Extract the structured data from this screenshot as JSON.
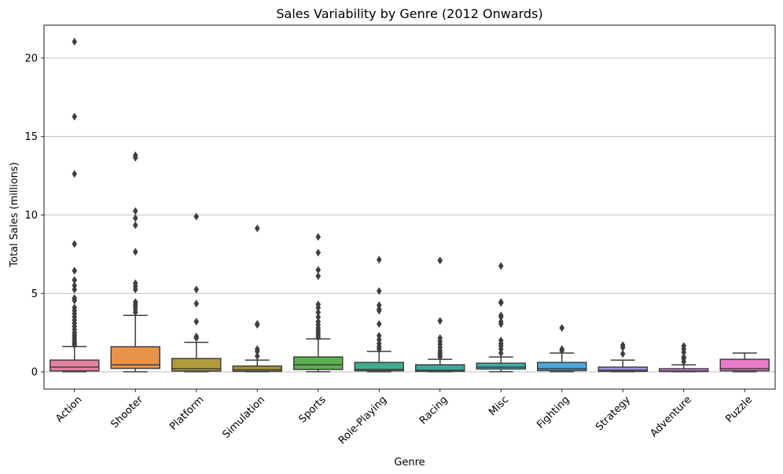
{
  "chart_data": {
    "type": "box",
    "title": "Sales Variability by Genre (2012 Onwards)",
    "xlabel": "Genre",
    "ylabel": "Total Sales (millions)",
    "ylim": [
      -1.1,
      22.1
    ],
    "yticks": [
      0,
      5,
      10,
      15,
      20
    ],
    "grid": "y",
    "categories": [
      "Action",
      "Shooter",
      "Platform",
      "Simulation",
      "Sports",
      "Role-Playing",
      "Racing",
      "Misc",
      "Fighting",
      "Strategy",
      "Adventure",
      "Puzzle"
    ],
    "colors": [
      "#e5819f",
      "#e8934b",
      "#b39a3b",
      "#a79436",
      "#58b34a",
      "#3fae8e",
      "#3ba99a",
      "#3fadb3",
      "#4ea6e0",
      "#a095df",
      "#d27fd8",
      "#e87ccc"
    ],
    "boxes": [
      {
        "name": "Action",
        "min": 0.01,
        "q1": 0.06,
        "median": 0.3,
        "q3": 0.75,
        "max": 1.62,
        "outliers": [
          21.05,
          16.27,
          12.62,
          8.15,
          6.45,
          5.85,
          5.5,
          5.25,
          4.7,
          4.55,
          4.1,
          3.9,
          3.7,
          3.5,
          3.3,
          3.1,
          2.9,
          2.7,
          2.5,
          2.35,
          2.2,
          2.05,
          1.9,
          1.8,
          1.7
        ]
      },
      {
        "name": "Shooter",
        "min": 0.01,
        "q1": 0.22,
        "median": 0.45,
        "q3": 1.6,
        "max": 3.6,
        "outliers": [
          13.8,
          13.65,
          10.25,
          9.8,
          9.35,
          7.65,
          5.65,
          5.45,
          5.25,
          4.45,
          4.3,
          4.15,
          4.0,
          3.8
        ]
      },
      {
        "name": "Platform",
        "min": 0.01,
        "q1": 0.05,
        "median": 0.2,
        "q3": 0.85,
        "max": 1.88,
        "outliers": [
          9.9,
          5.25,
          4.35,
          3.2,
          2.25,
          2.15
        ]
      },
      {
        "name": "Simulation",
        "min": 0.01,
        "q1": 0.03,
        "median": 0.13,
        "q3": 0.37,
        "max": 0.75,
        "outliers": [
          9.15,
          3.05,
          3.0,
          1.45,
          1.3,
          1.0
        ]
      },
      {
        "name": "Sports",
        "min": 0.01,
        "q1": 0.15,
        "median": 0.45,
        "q3": 0.95,
        "max": 2.1,
        "outliers": [
          8.6,
          7.6,
          6.5,
          6.1,
          4.3,
          4.1,
          3.8,
          3.5,
          3.2,
          3.0,
          2.8,
          2.65,
          2.5,
          2.35,
          2.2
        ]
      },
      {
        "name": "Role-Playing",
        "min": 0.01,
        "q1": 0.07,
        "median": 0.15,
        "q3": 0.6,
        "max": 1.3,
        "outliers": [
          7.15,
          5.15,
          4.25,
          4.0,
          3.9,
          3.05,
          2.3,
          2.05,
          1.8,
          1.6,
          1.45
        ]
      },
      {
        "name": "Racing",
        "min": 0.01,
        "q1": 0.03,
        "median": 0.1,
        "q3": 0.45,
        "max": 0.8,
        "outliers": [
          7.1,
          3.25,
          2.15,
          1.95,
          1.75,
          1.55,
          1.35,
          1.2,
          1.05,
          0.95
        ]
      },
      {
        "name": "Misc",
        "min": 0.01,
        "q1": 0.18,
        "median": 0.3,
        "q3": 0.55,
        "max": 0.95,
        "outliers": [
          6.75,
          4.45,
          4.4,
          3.6,
          3.5,
          3.2,
          3.05,
          2.0,
          1.8,
          1.65,
          1.45,
          1.2
        ]
      },
      {
        "name": "Fighting",
        "min": 0.01,
        "q1": 0.08,
        "median": 0.2,
        "q3": 0.6,
        "max": 1.2,
        "outliers": [
          2.8,
          1.45,
          1.35
        ]
      },
      {
        "name": "Strategy",
        "min": 0.01,
        "q1": 0.03,
        "median": 0.1,
        "q3": 0.3,
        "max": 0.75,
        "outliers": [
          1.7,
          1.55,
          1.15
        ]
      },
      {
        "name": "Adventure",
        "min": 0.01,
        "q1": 0.02,
        "median": 0.05,
        "q3": 0.2,
        "max": 0.45,
        "outliers": [
          1.65,
          1.45,
          1.25,
          0.95,
          0.85,
          0.65
        ]
      },
      {
        "name": "Puzzle",
        "min": 0.01,
        "q1": 0.07,
        "median": 0.2,
        "q3": 0.8,
        "max": 1.2,
        "outliers": []
      }
    ]
  }
}
